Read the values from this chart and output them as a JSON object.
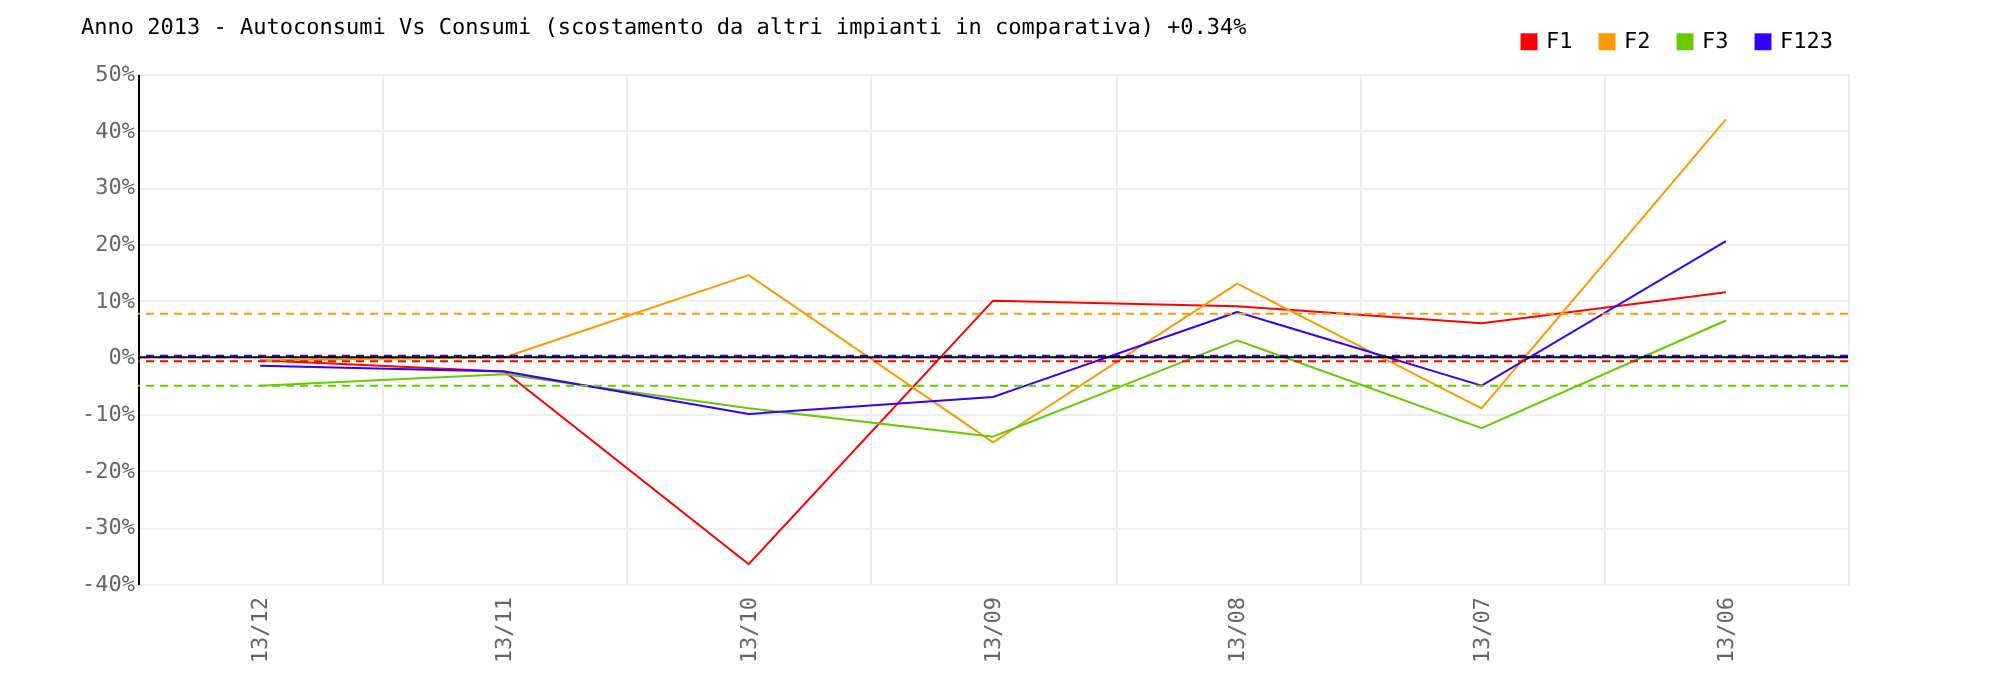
{
  "chart_data": {
    "type": "line",
    "title": "Anno 2013 - Autoconsumi Vs Consumi (scostamento da altri impianti in comparativa) +0.34%",
    "categories": [
      "13/12",
      "13/11",
      "13/10",
      "13/09",
      "13/08",
      "13/07",
      "13/06"
    ],
    "series": [
      {
        "name": "F1",
        "color": "#ff0000",
        "values": [
          -0.5,
          -2.5,
          -36.5,
          10,
          9,
          6,
          11.5
        ]
      },
      {
        "name": "F2",
        "color": "#ff9900",
        "values": [
          -0.5,
          0,
          14.5,
          -15,
          13,
          -9,
          42
        ]
      },
      {
        "name": "F3",
        "color": "#66cc00",
        "values": [
          -5,
          -3,
          -9,
          -14,
          3,
          -12.5,
          6.5
        ]
      },
      {
        "name": "F123",
        "color": "#3300ff",
        "values": [
          -1.5,
          -2.5,
          -10,
          -7,
          8,
          -5,
          20.5
        ]
      }
    ],
    "ylim": [
      -40,
      50
    ],
    "yticks": [
      {
        "value": -40,
        "label": "-40%"
      },
      {
        "value": -30,
        "label": "-30%"
      },
      {
        "value": -20,
        "label": "-20%"
      },
      {
        "value": -10,
        "label": "-10%"
      },
      {
        "value": 0,
        "label": "0%"
      },
      {
        "value": 10,
        "label": "10%"
      },
      {
        "value": 20,
        "label": "20%"
      },
      {
        "value": 30,
        "label": "30%"
      },
      {
        "value": 40,
        "label": "40%"
      },
      {
        "value": 50,
        "label": "50%"
      }
    ],
    "ref_lines": [
      {
        "axis": "y",
        "value": 7.7,
        "color": "#ff9900",
        "line_style": "dashed"
      },
      {
        "axis": "y",
        "value": -5,
        "color": "#66cc00",
        "line_style": "dashed"
      },
      {
        "axis": "y",
        "value": -0.7,
        "color": "#ff0000",
        "line_style": "dashed"
      },
      {
        "axis": "y",
        "value": 0.3,
        "color": "#3300ff",
        "line_style": "dashed"
      },
      {
        "axis": "y",
        "value": 0,
        "color": "#000000",
        "line_style": "solid"
      }
    ],
    "grid": true,
    "legend": "top right",
    "marker": "none",
    "line_style": "solid"
  }
}
